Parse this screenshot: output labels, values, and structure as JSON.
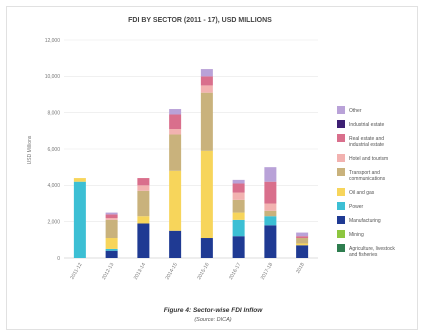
{
  "chart_data": {
    "type": "bar",
    "stacked": true,
    "title": "FDI BY SECTOR (2011 - 17), USD MILLIONS",
    "ylabel": "USD Millions",
    "xlabel": "",
    "ylim": [
      0,
      12000
    ],
    "yticks": [
      "0",
      "2,000",
      "4,000",
      "6,000",
      "8,000",
      "10,000",
      "12,000"
    ],
    "ytick_values": [
      0,
      2000,
      4000,
      6000,
      8000,
      10000,
      12000
    ],
    "grid": true,
    "legend_position": "right",
    "categories": [
      "2011-12",
      "2012-13",
      "2013-14",
      "2014-15",
      "2015-16",
      "2016-17",
      "2017-18",
      "2018"
    ],
    "series": [
      {
        "name": "Agriculture, livestock and fisheries",
        "color": "#2e7d4f",
        "values": [
          0,
          0,
          0,
          0,
          0,
          0,
          0,
          0
        ]
      },
      {
        "name": "Mining",
        "color": "#8dc63f",
        "values": [
          0,
          0,
          0,
          0,
          0,
          0,
          0,
          0
        ]
      },
      {
        "name": "Manufacturing",
        "color": "#1f3a93",
        "values": [
          0,
          400,
          1900,
          1500,
          1100,
          1200,
          1800,
          700
        ]
      },
      {
        "name": "Power",
        "color": "#3cbfd4",
        "values": [
          4200,
          100,
          0,
          0,
          0,
          900,
          500,
          0
        ]
      },
      {
        "name": "Oil and gas",
        "color": "#f7d55b",
        "values": [
          200,
          600,
          400,
          3300,
          4800,
          400,
          0,
          100
        ]
      },
      {
        "name": "Transport and communications",
        "color": "#c9b27c",
        "values": [
          0,
          1000,
          1400,
          2000,
          3200,
          700,
          300,
          300
        ]
      },
      {
        "name": "Hotel and tourism",
        "color": "#f2b2b0",
        "values": [
          0,
          100,
          300,
          300,
          400,
          400,
          400,
          0
        ]
      },
      {
        "name": "Real estate and industrial estate",
        "color": "#d96f8c",
        "values": [
          0,
          200,
          400,
          800,
          500,
          500,
          1200,
          100
        ]
      },
      {
        "name": "Industrial estate",
        "color": "#3d1f73",
        "values": [
          0,
          0,
          0,
          0,
          0,
          0,
          0,
          0
        ]
      },
      {
        "name": "Other",
        "color": "#b9a2d8",
        "values": [
          0,
          100,
          0,
          300,
          400,
          200,
          800,
          200
        ]
      }
    ]
  },
  "caption": {
    "figure": "Figure 4: Sector-wise FDI Inflow",
    "source": "(Source: DICA)"
  }
}
